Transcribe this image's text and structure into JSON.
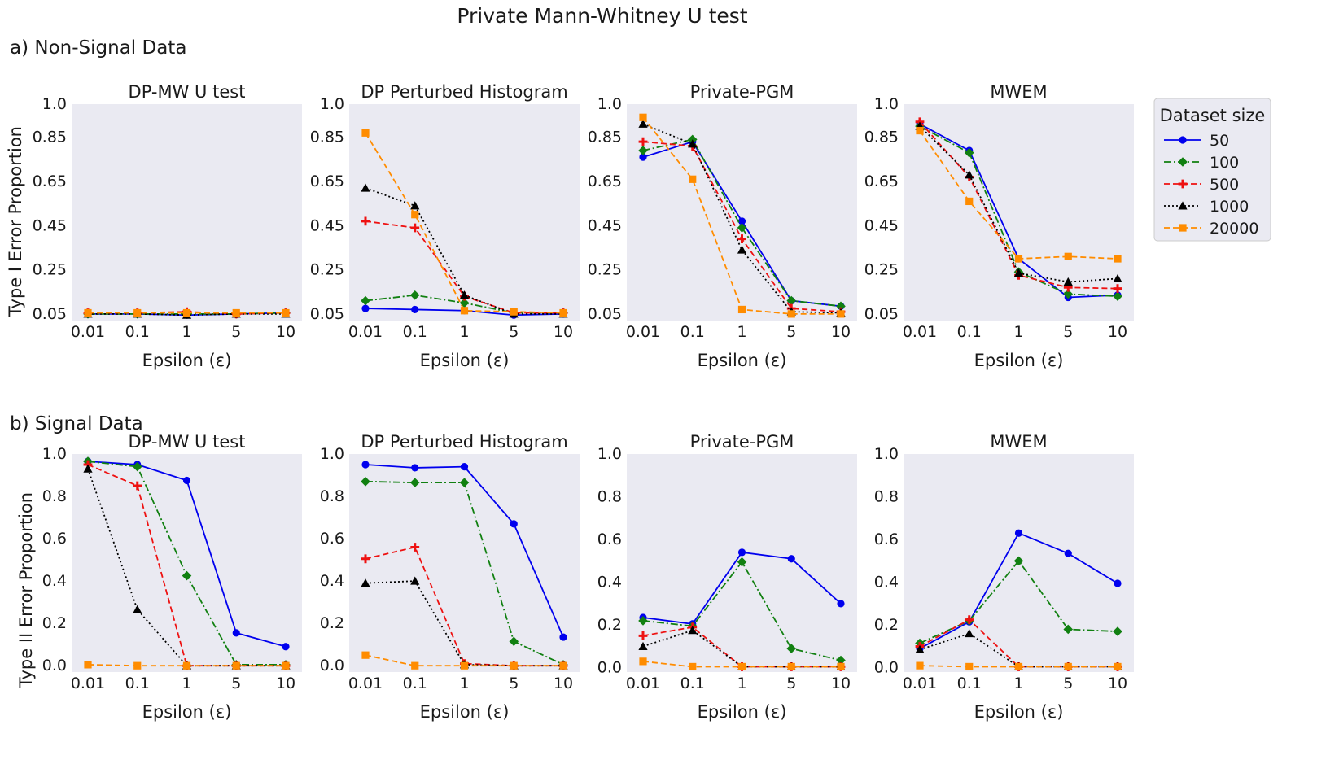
{
  "suptitle": "Private Mann-Whitney U test",
  "colors": {
    "50": "#0000ee",
    "100": "#118011",
    "500": "#ee1111",
    "1000": "#000000",
    "20000": "#ff8c00",
    "panel_bg": "#eaeaf2"
  },
  "legend": {
    "title": "Dataset size",
    "entries": [
      {
        "label": "50",
        "marker": "circle",
        "dash": "solid"
      },
      {
        "label": "100",
        "marker": "diamond",
        "dash": "dashdot"
      },
      {
        "label": "500",
        "marker": "plus",
        "dash": "dashed"
      },
      {
        "label": "1000",
        "marker": "triangle",
        "dash": "dotted"
      },
      {
        "label": "20000",
        "marker": "square",
        "dash": "dashed"
      }
    ],
    "position": "right of top row"
  },
  "rows": [
    {
      "label": "a) Non-Signal Data",
      "ylabel": "Type I Error Proportion"
    },
    {
      "label": "b) Signal Data",
      "ylabel": "Type II Error Proportion"
    }
  ],
  "chart_data": [
    {
      "type": "line",
      "row": 0,
      "col": 0,
      "title": "DP-MW U test",
      "xlabel": "Epsilon (ε)",
      "ylabel": "Type I Error Proportion",
      "categories": [
        "0.01",
        "0.1",
        "1",
        "5",
        "10"
      ],
      "ylim": [
        0.02,
        1.0
      ],
      "yticks": [
        0.05,
        0.25,
        0.45,
        0.65,
        0.85,
        1.0
      ],
      "ytick_labels": [
        "0.05",
        "0.25",
        "0.45",
        "0.65",
        "0.85",
        "1.0"
      ],
      "series": [
        {
          "name": "50",
          "values": [
            0.05,
            0.05,
            0.045,
            0.05,
            0.055
          ]
        },
        {
          "name": "100",
          "values": [
            0.05,
            0.05,
            0.05,
            0.05,
            0.055
          ]
        },
        {
          "name": "500",
          "values": [
            0.055,
            0.055,
            0.06,
            0.05,
            0.055
          ]
        },
        {
          "name": "1000",
          "values": [
            0.05,
            0.05,
            0.045,
            0.05,
            0.05
          ]
        },
        {
          "name": "20000",
          "values": [
            0.055,
            0.055,
            0.055,
            0.055,
            0.055
          ]
        }
      ]
    },
    {
      "type": "line",
      "row": 0,
      "col": 1,
      "title": "DP Perturbed Histogram",
      "xlabel": "Epsilon (ε)",
      "ylabel": "",
      "categories": [
        "0.01",
        "0.1",
        "1",
        "5",
        "10"
      ],
      "ylim": [
        0.02,
        1.0
      ],
      "yticks": [
        0.05,
        0.25,
        0.45,
        0.65,
        0.85,
        1.0
      ],
      "ytick_labels": [
        "0.05",
        "0.25",
        "0.45",
        "0.65",
        "0.85",
        "1.0"
      ],
      "series": [
        {
          "name": "50",
          "values": [
            0.075,
            0.07,
            0.065,
            0.045,
            0.05
          ]
        },
        {
          "name": "100",
          "values": [
            0.11,
            0.135,
            0.1,
            0.055,
            0.055
          ]
        },
        {
          "name": "500",
          "values": [
            0.47,
            0.44,
            0.13,
            0.055,
            0.055
          ]
        },
        {
          "name": "1000",
          "values": [
            0.62,
            0.54,
            0.135,
            0.05,
            0.05
          ]
        },
        {
          "name": "20000",
          "values": [
            0.87,
            0.5,
            0.065,
            0.06,
            0.055
          ]
        }
      ]
    },
    {
      "type": "line",
      "row": 0,
      "col": 2,
      "title": "Private-PGM",
      "xlabel": "Epsilon (ε)",
      "ylabel": "",
      "categories": [
        "0.01",
        "0.1",
        "1",
        "5",
        "10"
      ],
      "ylim": [
        0.02,
        1.0
      ],
      "yticks": [
        0.05,
        0.25,
        0.45,
        0.65,
        0.85,
        1.0
      ],
      "ytick_labels": [
        "0.05",
        "0.25",
        "0.45",
        "0.65",
        "0.85",
        "1.0"
      ],
      "series": [
        {
          "name": "50",
          "values": [
            0.76,
            0.83,
            0.47,
            0.11,
            0.085
          ]
        },
        {
          "name": "100",
          "values": [
            0.79,
            0.84,
            0.44,
            0.11,
            0.085
          ]
        },
        {
          "name": "500",
          "values": [
            0.83,
            0.81,
            0.39,
            0.075,
            0.06
          ]
        },
        {
          "name": "1000",
          "values": [
            0.91,
            0.82,
            0.34,
            0.06,
            0.055
          ]
        },
        {
          "name": "20000",
          "values": [
            0.94,
            0.66,
            0.07,
            0.05,
            0.05
          ]
        }
      ]
    },
    {
      "type": "line",
      "row": 0,
      "col": 3,
      "title": "MWEM",
      "xlabel": "Epsilon (ε)",
      "ylabel": "",
      "categories": [
        "0.01",
        "0.1",
        "1",
        "5",
        "10"
      ],
      "ylim": [
        0.02,
        1.0
      ],
      "yticks": [
        0.05,
        0.25,
        0.45,
        0.65,
        0.85,
        1.0
      ],
      "ytick_labels": [
        "0.05",
        "0.25",
        "0.45",
        "0.65",
        "0.85",
        "1.0"
      ],
      "series": [
        {
          "name": "50",
          "values": [
            0.91,
            0.79,
            0.3,
            0.125,
            0.135
          ]
        },
        {
          "name": "100",
          "values": [
            0.9,
            0.78,
            0.24,
            0.14,
            0.13
          ]
        },
        {
          "name": "500",
          "values": [
            0.92,
            0.67,
            0.225,
            0.17,
            0.165
          ]
        },
        {
          "name": "1000",
          "values": [
            0.9,
            0.68,
            0.235,
            0.195,
            0.21
          ]
        },
        {
          "name": "20000",
          "values": [
            0.88,
            0.56,
            0.3,
            0.31,
            0.3
          ]
        }
      ]
    },
    {
      "type": "line",
      "row": 1,
      "col": 0,
      "title": "DP-MW U test",
      "xlabel": "Epsilon (ε)",
      "ylabel": "Type II Error Proportion",
      "categories": [
        "0.01",
        "0.1",
        "1",
        "5",
        "10"
      ],
      "ylim": [
        -0.03,
        1.0
      ],
      "yticks": [
        0.0,
        0.2,
        0.4,
        0.6,
        0.8,
        1.0
      ],
      "ytick_labels": [
        "0.0",
        "0.2",
        "0.4",
        "0.6",
        "0.8",
        "1.0"
      ],
      "series": [
        {
          "name": "50",
          "values": [
            0.965,
            0.95,
            0.875,
            0.155,
            0.09
          ]
        },
        {
          "name": "100",
          "values": [
            0.965,
            0.94,
            0.425,
            0.005,
            0.005
          ]
        },
        {
          "name": "500",
          "values": [
            0.95,
            0.85,
            0.0,
            0.0,
            0.0
          ]
        },
        {
          "name": "1000",
          "values": [
            0.93,
            0.265,
            0.0,
            0.0,
            0.0
          ]
        },
        {
          "name": "20000",
          "values": [
            0.005,
            0.0,
            0.0,
            0.0,
            0.0
          ]
        }
      ]
    },
    {
      "type": "line",
      "row": 1,
      "col": 1,
      "title": "DP Perturbed Histogram",
      "xlabel": "Epsilon (ε)",
      "ylabel": "",
      "categories": [
        "0.01",
        "0.1",
        "1",
        "5",
        "10"
      ],
      "ylim": [
        -0.03,
        1.0
      ],
      "yticks": [
        0.0,
        0.2,
        0.4,
        0.6,
        0.8,
        1.0
      ],
      "ytick_labels": [
        "0.0",
        "0.2",
        "0.4",
        "0.6",
        "0.8",
        "1.0"
      ],
      "series": [
        {
          "name": "50",
          "values": [
            0.95,
            0.935,
            0.94,
            0.67,
            0.135
          ]
        },
        {
          "name": "100",
          "values": [
            0.87,
            0.865,
            0.865,
            0.115,
            0.005
          ]
        },
        {
          "name": "500",
          "values": [
            0.505,
            0.56,
            0.01,
            0.0,
            0.0
          ]
        },
        {
          "name": "1000",
          "values": [
            0.39,
            0.4,
            0.005,
            0.0,
            0.0
          ]
        },
        {
          "name": "20000",
          "values": [
            0.05,
            0.0,
            0.0,
            0.0,
            0.0
          ]
        }
      ]
    },
    {
      "type": "line",
      "row": 1,
      "col": 2,
      "title": "Private-PGM",
      "xlabel": "Epsilon (ε)",
      "ylabel": "",
      "categories": [
        "0.01",
        "0.1",
        "1",
        "5",
        "10"
      ],
      "ylim": [
        -0.02,
        1.0
      ],
      "yticks": [
        0.0,
        0.2,
        0.4,
        0.6,
        0.8,
        1.0
      ],
      "ytick_labels": [
        "0.0",
        "0.2",
        "0.4",
        "0.6",
        "0.8",
        "1.0"
      ],
      "series": [
        {
          "name": "50",
          "values": [
            0.235,
            0.205,
            0.54,
            0.51,
            0.3
          ]
        },
        {
          "name": "100",
          "values": [
            0.22,
            0.195,
            0.495,
            0.09,
            0.035
          ]
        },
        {
          "name": "500",
          "values": [
            0.15,
            0.19,
            0.005,
            0.005,
            0.005
          ]
        },
        {
          "name": "1000",
          "values": [
            0.1,
            0.175,
            0.005,
            0.005,
            0.005
          ]
        },
        {
          "name": "20000",
          "values": [
            0.03,
            0.005,
            0.005,
            0.005,
            0.005
          ]
        }
      ]
    },
    {
      "type": "line",
      "row": 1,
      "col": 3,
      "title": "MWEM",
      "xlabel": "Epsilon (ε)",
      "ylabel": "",
      "categories": [
        "0.01",
        "0.1",
        "1",
        "5",
        "10"
      ],
      "ylim": [
        -0.02,
        1.0
      ],
      "yticks": [
        0.0,
        0.2,
        0.4,
        0.6,
        0.8,
        1.0
      ],
      "ytick_labels": [
        "0.0",
        "0.2",
        "0.4",
        "0.6",
        "0.8",
        "1.0"
      ],
      "series": [
        {
          "name": "50",
          "values": [
            0.09,
            0.215,
            0.63,
            0.535,
            0.395
          ]
        },
        {
          "name": "100",
          "values": [
            0.115,
            0.22,
            0.5,
            0.18,
            0.17
          ]
        },
        {
          "name": "500",
          "values": [
            0.1,
            0.225,
            0.005,
            0.005,
            0.005
          ]
        },
        {
          "name": "1000",
          "values": [
            0.085,
            0.16,
            0.005,
            0.005,
            0.005
          ]
        },
        {
          "name": "20000",
          "values": [
            0.01,
            0.005,
            0.005,
            0.005,
            0.005
          ]
        }
      ]
    }
  ]
}
